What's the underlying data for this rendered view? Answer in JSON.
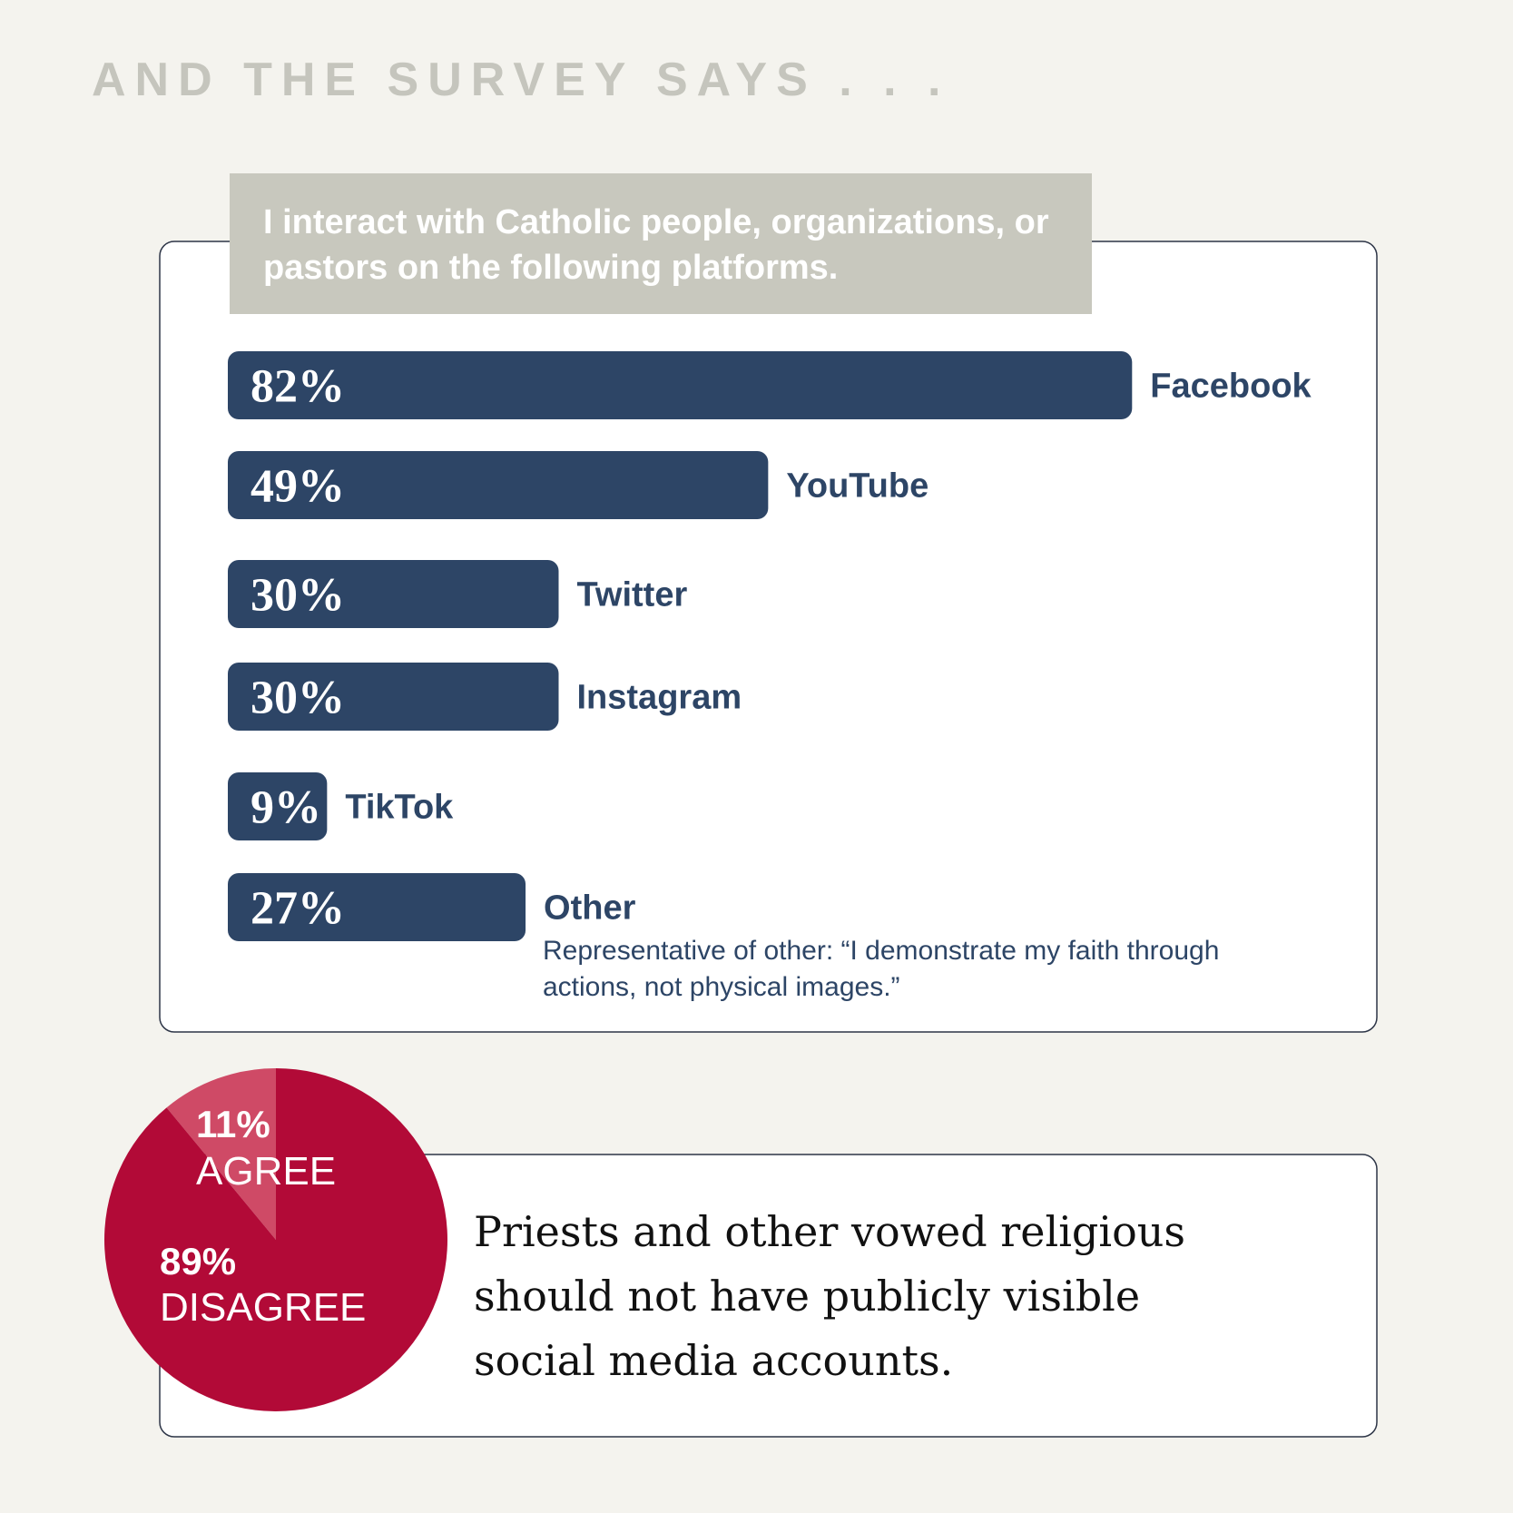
{
  "title": "AND THE SURVEY SAYS . . .",
  "chart_data": [
    {
      "type": "bar",
      "orientation": "horizontal",
      "title": "I interact with Catholic people, organizations, or pastors on the following platforms.",
      "categories": [
        "Facebook",
        "YouTube",
        "Twitter",
        "Instagram",
        "TikTok",
        "Other"
      ],
      "values": [
        82,
        49,
        30,
        30,
        9,
        27
      ],
      "value_labels": [
        "82%",
        "49%",
        "30%",
        "30%",
        "9%",
        "27%"
      ],
      "color": "#2d4566",
      "annotation": "Representative of other: “I demonstrate my faith through actions, not physical images.”"
    },
    {
      "type": "pie",
      "title": "Priests and other vowed religious should not have publicly visible social media accounts.",
      "categories": [
        "AGREE",
        "DISAGREE"
      ],
      "values": [
        11,
        89
      ],
      "value_labels": [
        "11%",
        "89%"
      ],
      "colors": [
        "#cf4a66",
        "#b20a37"
      ]
    }
  ]
}
